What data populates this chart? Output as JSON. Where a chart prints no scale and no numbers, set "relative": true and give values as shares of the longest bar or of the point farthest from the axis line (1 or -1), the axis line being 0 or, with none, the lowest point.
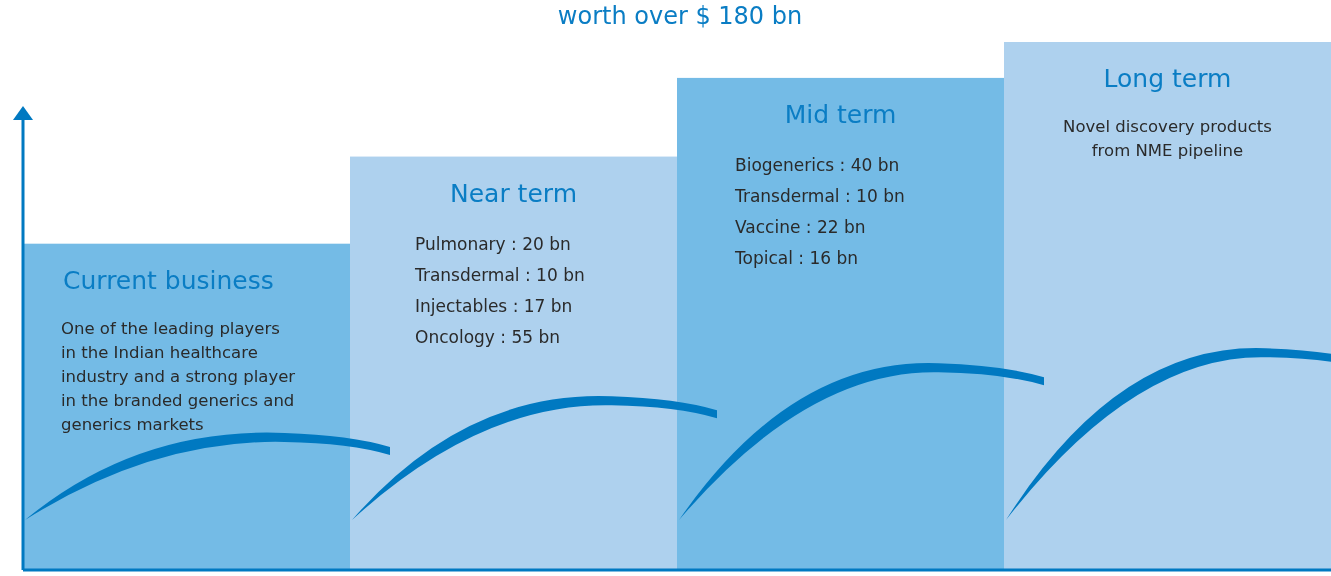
{
  "chart_data": {
    "type": "bar",
    "relative": true,
    "title": "worth over $ 180 bn",
    "categories": [
      "Current business",
      "Near term",
      "Mid term",
      "Long term"
    ],
    "values": [
      0.618,
      0.783,
      0.932,
      1
    ],
    "colors": [
      "#74bbe6",
      "#aed1ee",
      "#74bbe6",
      "#aed1ee"
    ],
    "annotations": [
      "One of the leading players in the Indian healthcare industry and a strong player in the branded generics and generics markets",
      "Pulmonary : 20 bn\nTransdermal : 10 bn\nInjectables : 17 bn\nOncology : 55 bn",
      "Biogenerics : 40 bn\nTransdermal : 10 bn\nVaccine : 22 bn\nTopical : 16 bn",
      "Novel discovery products\nfrom NME pipeline"
    ]
  }
}
